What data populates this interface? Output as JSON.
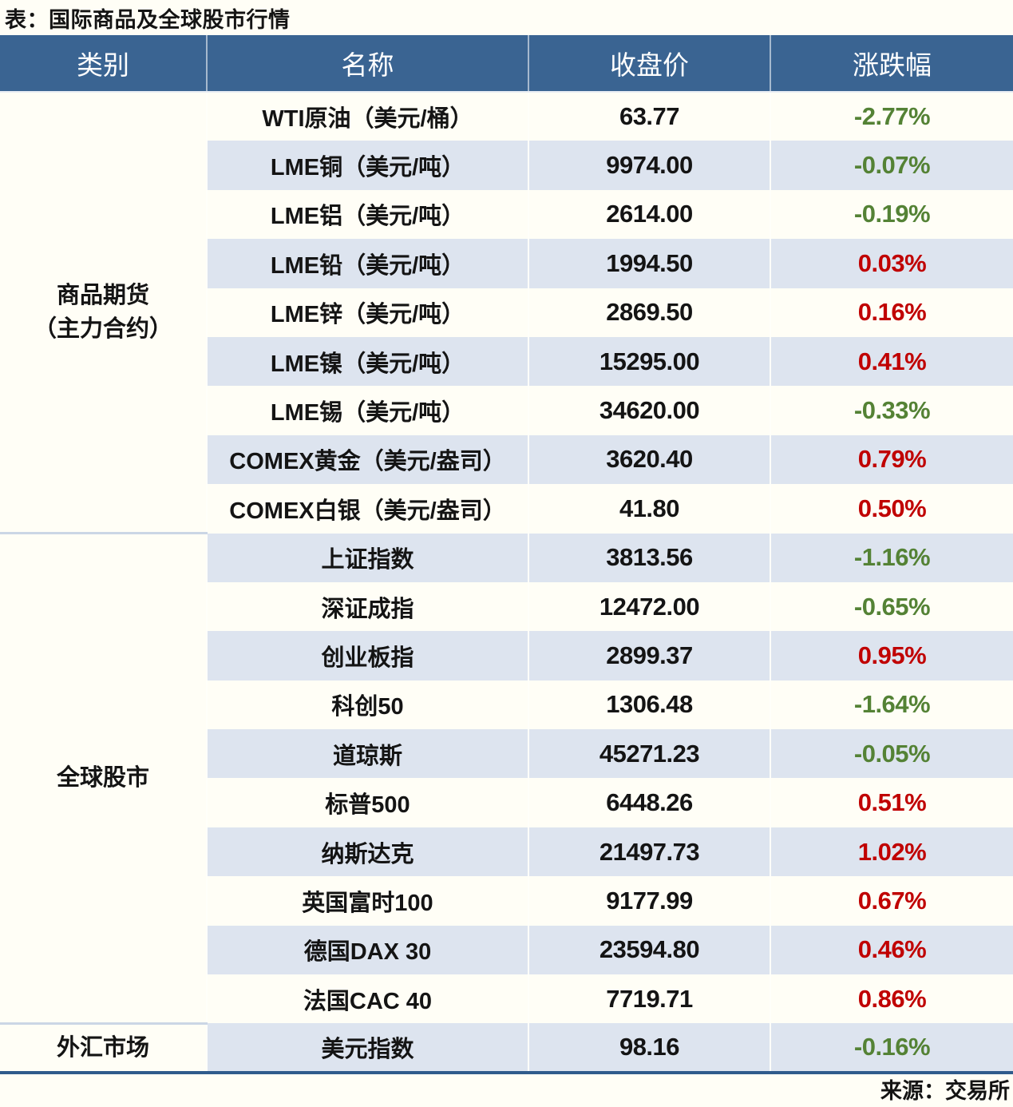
{
  "page_title": "表：国际商品及全球股市行情",
  "source_note": "来源：交易所",
  "colors": {
    "header_bg": "#3A6492",
    "header_text": "#FFFFFF",
    "stripe_bg": "#DDE4EF",
    "row_bg": "#FFFEF6",
    "up_red": "#C00000",
    "down_green": "#548235",
    "bottom_border_blue": "#2F5B8C",
    "category_separator": "#CBD6E5"
  },
  "chart_data": {
    "type": "table",
    "title": "表：国际商品及全球股市行情",
    "source": "来源：交易所",
    "columns": [
      "类别",
      "名称",
      "收盘价",
      "涨跌幅"
    ],
    "categories": [
      {
        "lines": [
          "商品期货",
          "（主力合约）"
        ],
        "span": 9
      },
      {
        "lines": [
          "全球股市"
        ],
        "span": 10
      },
      {
        "lines": [
          "外汇市场"
        ],
        "span": 1
      }
    ],
    "rows": [
      {
        "name": "WTI原油（美元/桶）",
        "close": "63.77",
        "change": "-2.77%",
        "direction": "down"
      },
      {
        "name": "LME铜（美元/吨）",
        "close": "9974.00",
        "change": "-0.07%",
        "direction": "down"
      },
      {
        "name": "LME铝（美元/吨）",
        "close": "2614.00",
        "change": "-0.19%",
        "direction": "down"
      },
      {
        "name": "LME铅（美元/吨）",
        "close": "1994.50",
        "change": "0.03%",
        "direction": "up"
      },
      {
        "name": "LME锌（美元/吨）",
        "close": "2869.50",
        "change": "0.16%",
        "direction": "up"
      },
      {
        "name": "LME镍（美元/吨）",
        "close": "15295.00",
        "change": "0.41%",
        "direction": "up"
      },
      {
        "name": "LME锡（美元/吨）",
        "close": "34620.00",
        "change": "-0.33%",
        "direction": "down"
      },
      {
        "name": "COMEX黄金（美元/盎司）",
        "close": "3620.40",
        "change": "0.79%",
        "direction": "up"
      },
      {
        "name": "COMEX白银（美元/盎司）",
        "close": "41.80",
        "change": "0.50%",
        "direction": "up"
      },
      {
        "name": "上证指数",
        "close": "3813.56",
        "change": "-1.16%",
        "direction": "down"
      },
      {
        "name": "深证成指",
        "close": "12472.00",
        "change": "-0.65%",
        "direction": "down"
      },
      {
        "name": "创业板指",
        "close": "2899.37",
        "change": "0.95%",
        "direction": "up"
      },
      {
        "name": "科创50",
        "close": "1306.48",
        "change": "-1.64%",
        "direction": "down"
      },
      {
        "name": "道琼斯",
        "close": "45271.23",
        "change": "-0.05%",
        "direction": "down"
      },
      {
        "name": "标普500",
        "close": "6448.26",
        "change": "0.51%",
        "direction": "up"
      },
      {
        "name": "纳斯达克",
        "close": "21497.73",
        "change": "1.02%",
        "direction": "up"
      },
      {
        "name": "英国富时100",
        "close": "9177.99",
        "change": "0.67%",
        "direction": "up"
      },
      {
        "name": "德国DAX 30",
        "close": "23594.80",
        "change": "0.46%",
        "direction": "up"
      },
      {
        "name": "法国CAC 40",
        "close": "7719.71",
        "change": "0.86%",
        "direction": "up"
      },
      {
        "name": "美元指数",
        "close": "98.16",
        "change": "-0.16%",
        "direction": "down"
      }
    ]
  }
}
